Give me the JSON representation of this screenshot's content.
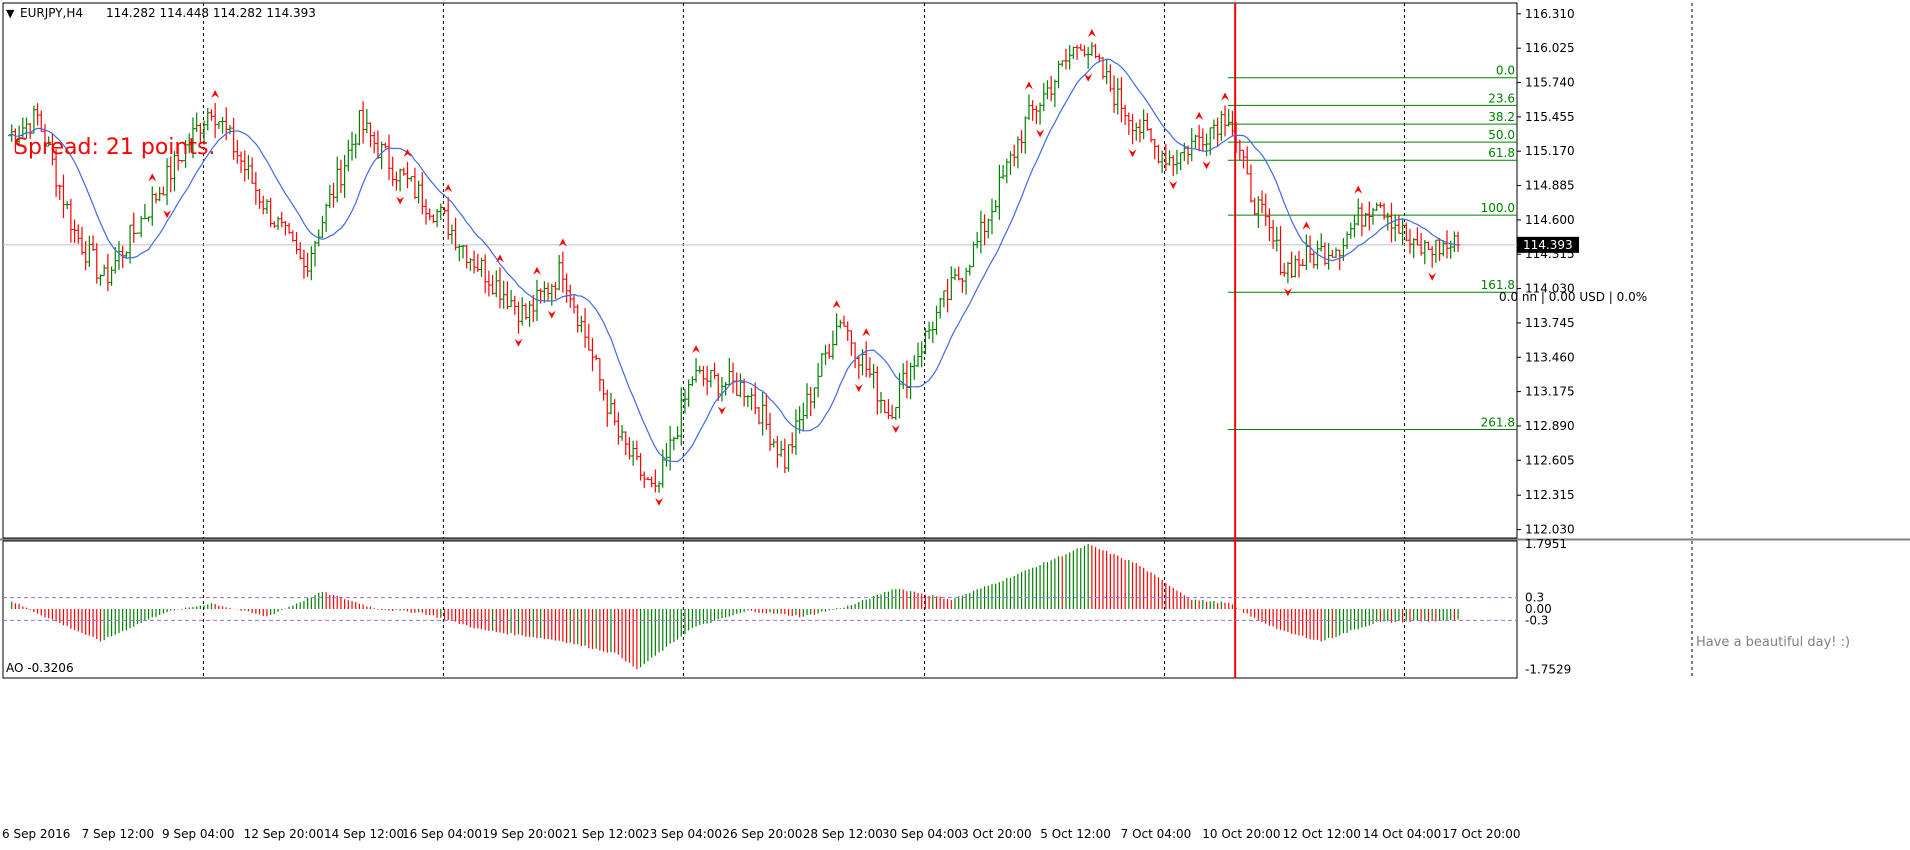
{
  "header": {
    "menu_glyph": "▼",
    "symbol_timeframe": "EURJPY,H4",
    "ohlc": "114.282 114.448 114.282 114.393"
  },
  "spread_text": "Spread: 21 points.",
  "position_info": "0.0 nn | 0.00 USD | 0.0%",
  "greeting": "Have a beautiful day! :)",
  "current_price": "114.393",
  "colors": {
    "bull": "#008000",
    "bear": "#ff0000",
    "ma": "#4169e1",
    "fib": "#008000",
    "grid": "#000000",
    "vline": "#ff0000",
    "ao_level": "#9370db",
    "price_label_bg": "#000000",
    "price_label_text": "#ffffff"
  },
  "oscillator": {
    "label": "AO -0.3206",
    "axis_ticks": [
      "1.7951",
      "0.3",
      "0.00",
      "-0.3",
      "-1.7529"
    ]
  },
  "chart_data": {
    "type": "candlestick",
    "symbol": "EURJPY",
    "timeframe": "H4",
    "price_axis_ticks": [
      "116.310",
      "116.025",
      "115.740",
      "115.455",
      "115.170",
      "114.885",
      "114.600",
      "114.315",
      "114.030",
      "113.745",
      "113.460",
      "113.175",
      "112.890",
      "112.605",
      "112.315",
      "112.030"
    ],
    "time_axis_ticks": [
      "6 Sep 2016",
      "7 Sep 12:00",
      "9 Sep 04:00",
      "12 Sep 20:00",
      "14 Sep 12:00",
      "16 Sep 04:00",
      "19 Sep 20:00",
      "21 Sep 12:00",
      "23 Sep 04:00",
      "26 Sep 20:00",
      "28 Sep 12:00",
      "30 Sep 04:00",
      "3 Oct 20:00",
      "5 Oct 12:00",
      "7 Oct 04:00",
      "10 Oct 20:00",
      "12 Oct 12:00",
      "14 Oct 04:00",
      "17 Oct 20:00"
    ],
    "fib_levels": [
      {
        "label": "0.0",
        "price": 115.78
      },
      {
        "label": "23.6",
        "price": 115.55
      },
      {
        "label": "38.2",
        "price": 115.395
      },
      {
        "label": "50.0",
        "price": 115.245
      },
      {
        "label": "61.8",
        "price": 115.095
      },
      {
        "label": "100.0",
        "price": 114.64
      },
      {
        "label": "161.8",
        "price": 114.0
      },
      {
        "label": "261.8",
        "price": 112.86
      }
    ],
    "ylim": [
      111.96,
      116.4
    ],
    "ao_range": [
      -1.7529,
      1.7951
    ],
    "ao_levels": [
      0.3,
      -0.3
    ],
    "price_keypoints": [
      [
        0,
        115.3
      ],
      [
        8,
        115.45
      ],
      [
        18,
        114.5
      ],
      [
        26,
        114.1
      ],
      [
        40,
        114.8
      ],
      [
        55,
        115.55
      ],
      [
        68,
        114.8
      ],
      [
        80,
        114.2
      ],
      [
        95,
        115.4
      ],
      [
        105,
        115.0
      ],
      [
        118,
        114.6
      ],
      [
        125,
        114.3
      ],
      [
        140,
        113.8
      ],
      [
        150,
        114.2
      ],
      [
        165,
        112.8
      ],
      [
        175,
        112.3
      ],
      [
        185,
        113.3
      ],
      [
        200,
        113.2
      ],
      [
        210,
        112.6
      ],
      [
        225,
        113.8
      ],
      [
        238,
        113.0
      ],
      [
        250,
        113.75
      ],
      [
        262,
        114.4
      ],
      [
        275,
        115.4
      ],
      [
        290,
        116.1
      ],
      [
        300,
        115.6
      ],
      [
        310,
        115.2
      ],
      [
        315,
        115.1
      ],
      [
        330,
        115.5
      ],
      [
        335,
        114.9
      ],
      [
        345,
        114.2
      ],
      [
        360,
        114.4
      ],
      [
        370,
        114.8
      ],
      [
        380,
        114.35
      ],
      [
        392,
        114.39
      ]
    ],
    "ao_keypoints": [
      [
        0,
        0.25
      ],
      [
        10,
        -0.2
      ],
      [
        25,
        -0.85
      ],
      [
        42,
        -0.1
      ],
      [
        55,
        0.15
      ],
      [
        70,
        -0.2
      ],
      [
        85,
        0.45
      ],
      [
        100,
        0.0
      ],
      [
        112,
        -0.1
      ],
      [
        128,
        -0.55
      ],
      [
        150,
        -0.85
      ],
      [
        165,
        -1.2
      ],
      [
        170,
        -1.6
      ],
      [
        185,
        -0.5
      ],
      [
        200,
        -0.05
      ],
      [
        215,
        -0.2
      ],
      [
        228,
        0.1
      ],
      [
        240,
        0.55
      ],
      [
        255,
        0.25
      ],
      [
        270,
        0.8
      ],
      [
        292,
        1.7
      ],
      [
        305,
        1.2
      ],
      [
        320,
        0.25
      ],
      [
        330,
        0.15
      ],
      [
        336,
        -0.2
      ],
      [
        345,
        -0.6
      ],
      [
        355,
        -0.85
      ],
      [
        370,
        -0.35
      ],
      [
        392,
        -0.3
      ]
    ]
  }
}
